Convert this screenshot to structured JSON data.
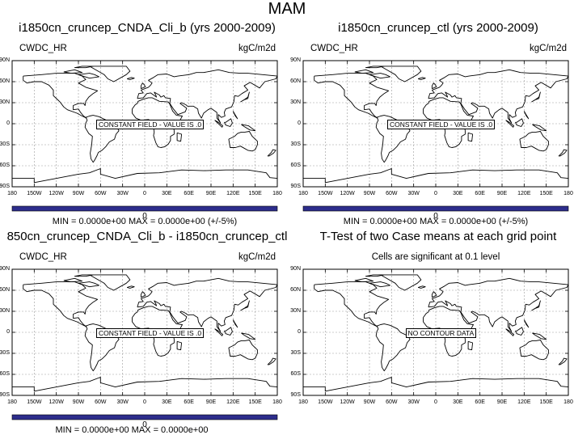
{
  "figure_title": "MAM",
  "panels": [
    {
      "title": "i1850cn_cruncep_CNDA_Cli_b (yrs 2000-2009)",
      "left_label": "CWDC_HR",
      "right_label": "kgC/m2d",
      "center_label": "",
      "field_box": "CONSTANT FIELD - VALUE IS .0",
      "colorbar_label": "0",
      "minmax": "MIN = 0.0000e+00 MAX = 0.0000e+00 (+/-5%)"
    },
    {
      "title": "i1850cn_cruncep_ctl (yrs 2000-2009)",
      "left_label": "CWDC_HR",
      "right_label": "kgC/m2d",
      "center_label": "",
      "field_box": "CONSTANT FIELD - VALUE IS .0",
      "colorbar_label": "0",
      "minmax": "MIN = 0.0000e+00 MAX = 0.0000e+00 (+/-5%)"
    },
    {
      "title": "850cn_cruncep_CNDA_Cli_b - i1850cn_cruncep_ctl",
      "left_label": "CWDC_HR",
      "right_label": "kgC/m2d",
      "center_label": "",
      "field_box": "CONSTANT FIELD - VALUE IS .0",
      "colorbar_label": "0",
      "minmax": "MIN = 0.0000e+00 MAX = 0.0000e+00"
    },
    {
      "title": "T-Test of two Case means at each grid point",
      "left_label": "",
      "right_label": "",
      "center_label": "Cells are significant at 0.1 level",
      "field_box": "NO CONTOUR DATA",
      "colorbar_label": "",
      "minmax": ""
    }
  ],
  "lat_ticks": [
    "90N",
    "60N",
    "30N",
    "0",
    "30S",
    "60S",
    "90S"
  ],
  "lon_ticks": [
    "180",
    "150W",
    "120W",
    "90W",
    "60W",
    "30W",
    "0",
    "30E",
    "60E",
    "90E",
    "120E",
    "150E",
    "180"
  ],
  "colors": {
    "colorbar": "#2d2d8c",
    "grid": "#9a9a9a",
    "coast": "#000000"
  }
}
